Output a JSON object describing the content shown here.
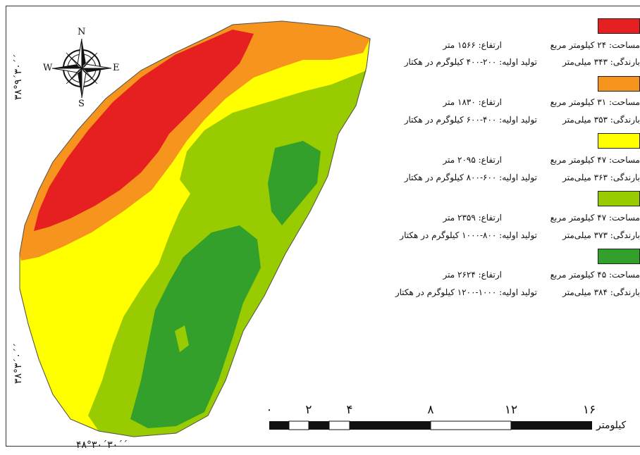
{
  "map": {
    "compass": {
      "north": "N",
      "south": "S",
      "east": "E",
      "west": "W"
    },
    "coordinates": {
      "lat_top": "۳۸°۹´۳۰´´",
      "lat_bottom": "۳۸°۳´۰´´",
      "lon_bottom": "۴۸°۳۰´۳۰´´"
    },
    "legend": [
      {
        "color": "#e62020",
        "area": "مساحت: ۲۴ کیلومتر مربع",
        "elevation": "ارتفاع: ۱۵۶۶ متر",
        "rainfall": "بارندگی: ۳۴۳ میلی‌متر",
        "production": "تولید اولیه: ۲۰۰-۴۰۰ کیلوگرم در هکتار"
      },
      {
        "color": "#f7941d",
        "area": "مساحت: ۳۱ کیلومتر مربع",
        "elevation": "ارتفاع: ۱۸۳۰ متر",
        "rainfall": "بارندگی: ۳۵۳ میلی‌متر",
        "production": "تولید اولیه: ۴۰۰-۶۰۰ کیلوگرم در هکتار"
      },
      {
        "color": "#ffff00",
        "area": "مساحت: ۴۷ کیلومتر مربع",
        "elevation": "ارتفاع: ۲۰۹۵ متر",
        "rainfall": "بارندگی: ۳۶۳ میلی‌متر",
        "production": "تولید اولیه: ۶۰۰-۸۰۰ کیلوگرم در هکتار"
      },
      {
        "color": "#99cc00",
        "area": "مساحت: ۴۷ کیلومتر مربع",
        "elevation": "ارتفاع: ۲۳۵۹ متر",
        "rainfall": "بارندگی: ۳۷۳ میلی‌متر",
        "production": "تولید اولیه: ۸۰۰-۱۰۰۰ کیلوگرم در هکتار"
      },
      {
        "color": "#33a02c",
        "area": "مساحت: ۴۵ کیلومتر مربع",
        "elevation": "ارتفاع: ۲۶۲۴ متر",
        "rainfall": "بارندگی: ۳۸۴ میلی‌متر",
        "production": "تولید اولیه: ۱۰۰۰-۱۲۰۰ کیلوگرم در هکتار"
      }
    ],
    "scale_bar": {
      "labels": [
        "۰",
        "۲",
        "۴",
        "۸",
        "۱۲",
        "۱۶"
      ],
      "unit": "کیلومتر"
    }
  }
}
